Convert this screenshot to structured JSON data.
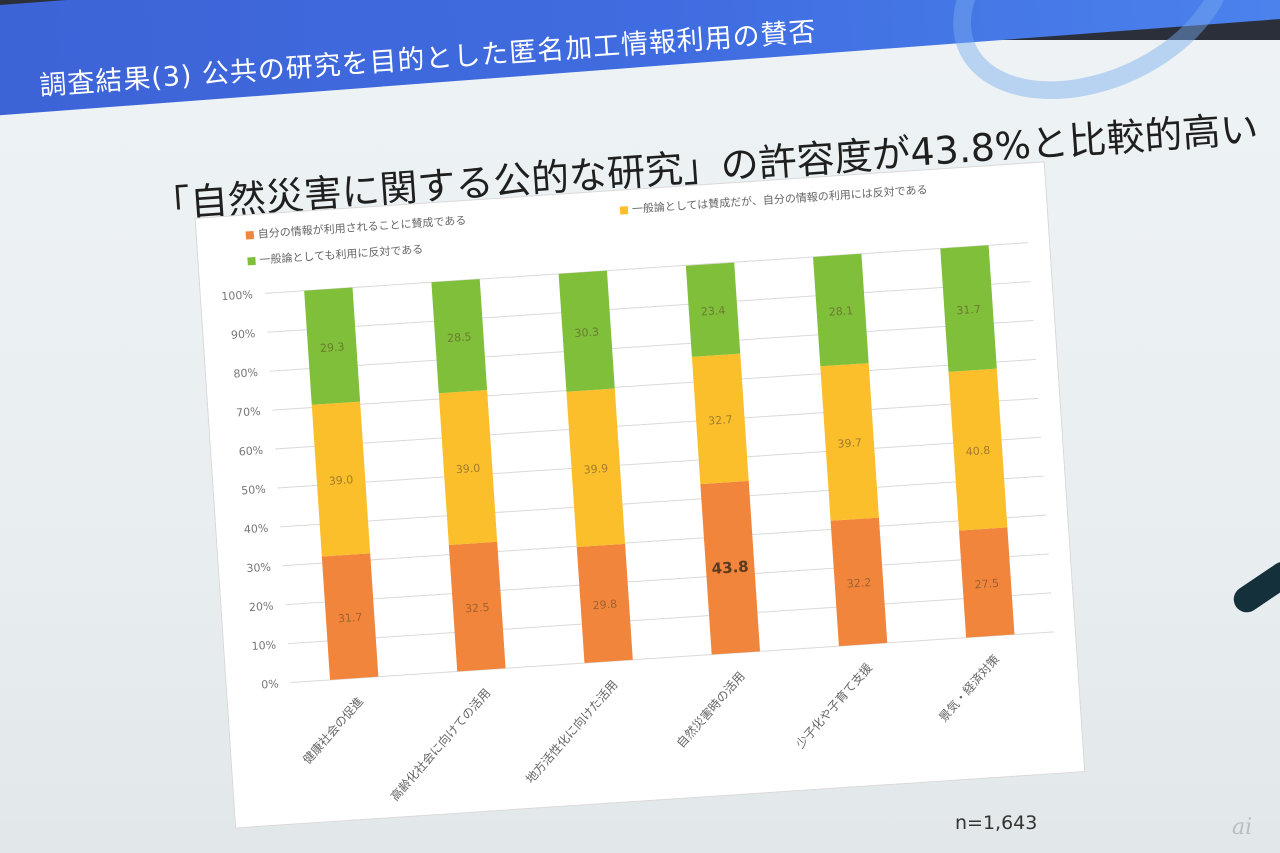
{
  "slide": {
    "banner_title": "調査結果(3) 公共の研究を目的とした匿名加工情報利用の賛否",
    "headline": "「自然災害に関する公的な研究」の許容度が43.8%と比較的高い",
    "n_label": "n=1,643",
    "logo_text": "ai",
    "colors": {
      "banner": "#3f6ce0",
      "agree": "#f2853c",
      "conditional": "#fbbf2c",
      "oppose": "#7fbf3a"
    }
  },
  "chart_data": {
    "type": "bar",
    "stacked": true,
    "orientation": "vertical",
    "categories": [
      "健康社会の促進",
      "高齢化社会に向けての活用",
      "地方活性化に向けた活用",
      "自然災害時の活用",
      "少子化や子育て支援",
      "景気・経済対策"
    ],
    "series": [
      {
        "name": "自分の情報が利用されることに賛成である",
        "values": [
          31.7,
          32.5,
          29.8,
          43.8,
          32.2,
          27.5
        ],
        "color": "#f2853c"
      },
      {
        "name": "一般論としては賛成だが、自分の情報の利用には反対である",
        "values": [
          39.0,
          39.0,
          39.9,
          32.7,
          39.7,
          40.8
        ],
        "color": "#fbbf2c"
      },
      {
        "name": "一般論としても利用に反対である",
        "values": [
          29.3,
          28.5,
          30.3,
          23.4,
          28.1,
          31.7
        ],
        "color": "#7fbf3a"
      }
    ],
    "data_labels": [
      [
        "31.7",
        "32.5",
        "29.8",
        "43.8",
        "32.2",
        "27.5"
      ],
      [
        "39.0",
        "39.0",
        "39.9",
        "32.7",
        "39.7",
        "40.8"
      ],
      [
        "29.3",
        "28.5",
        "30.3",
        "23.4",
        "28.1",
        "31.7"
      ]
    ],
    "highlight": {
      "series": 0,
      "category": 3
    },
    "y_ticks": [
      "0%",
      "10%",
      "20%",
      "30%",
      "40%",
      "50%",
      "60%",
      "70%",
      "80%",
      "90%",
      "100%"
    ],
    "ylim": [
      0,
      100
    ],
    "grid": true,
    "legend_position": "top"
  }
}
